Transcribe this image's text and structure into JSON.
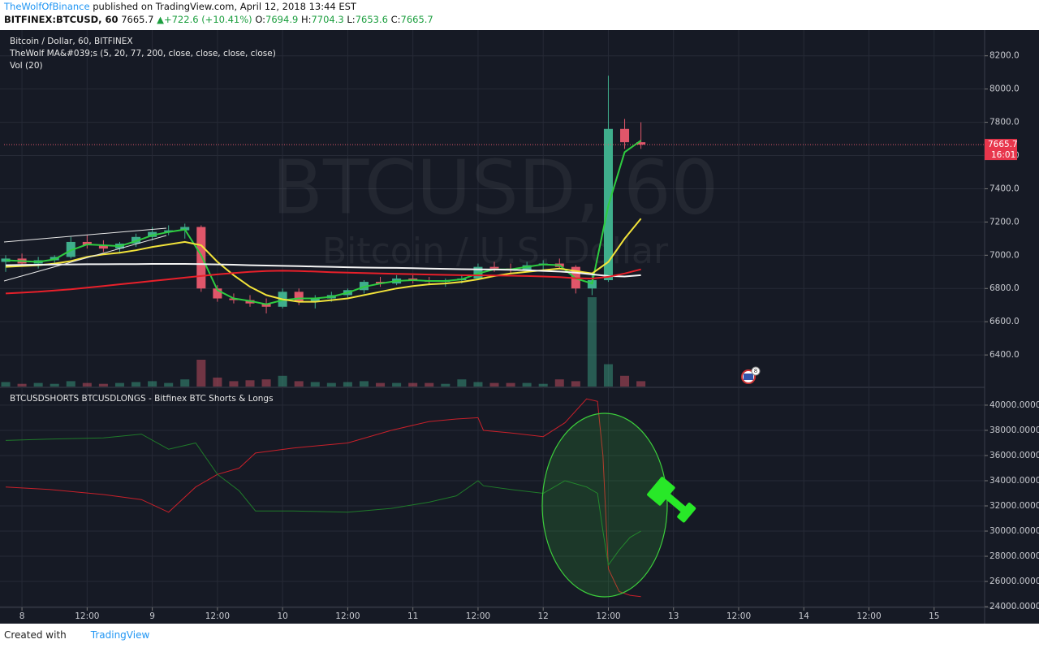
{
  "header": {
    "author": "TheWolfOfBinance",
    "published": "published on TradingView.com, April 12, 2018 13:44 EST",
    "symbol": "BITFINEX:BTCUSD, 60",
    "price": "7665.7",
    "change": "+722.6 (+10.41%)",
    "ohlc": [
      {
        "label": "O:",
        "value": "7694.9"
      },
      {
        "label": "H:",
        "value": "7704.3"
      },
      {
        "label": "L:",
        "value": "7653.6"
      },
      {
        "label": "C:",
        "value": "7665.7"
      }
    ]
  },
  "footer": {
    "created": "Created with",
    "brand": "TradingView"
  },
  "chart_data": [
    {
      "type": "candlestick",
      "title": "Bitcoin / Dollar, 60, BITFINEX",
      "indicator": "TheWolf MA&#039;s (5, 20, 77, 200, close, close, close, close)",
      "volume_label": "Vol (20)",
      "watermark": "BTCUSD, 60",
      "watermark_subtitle": "Bitcoin / U.S. Dollar",
      "event_badge": "8",
      "last_price": 7665.7,
      "countdown": "16:01",
      "up_color": "#3fae8c",
      "down_color": "#e0566a",
      "x": [
        -3,
        0,
        3,
        6,
        9,
        12,
        15,
        18,
        21,
        24,
        27,
        30,
        33,
        36,
        39,
        42,
        45,
        48,
        51,
        54,
        57,
        60,
        63,
        66,
        69,
        72,
        75,
        78,
        81,
        84,
        87,
        90,
        93,
        96,
        99,
        102,
        105,
        108,
        111,
        114
      ],
      "open": [
        6960,
        6980,
        6950,
        6970,
        6990,
        7080,
        7060,
        7040,
        7070,
        7110,
        7140,
        7150,
        7170,
        6800,
        6740,
        6730,
        6710,
        6690,
        6780,
        6720,
        6740,
        6760,
        6790,
        6840,
        6830,
        6860,
        6850,
        6840,
        6850,
        6860,
        6930,
        6920,
        6910,
        6940,
        6950,
        6930,
        6800,
        6850,
        7760,
        7680
      ],
      "high": [
        7000,
        7010,
        6990,
        7000,
        7110,
        7120,
        7090,
        7080,
        7130,
        7170,
        7180,
        7190,
        7180,
        6820,
        6770,
        6760,
        6740,
        6800,
        6800,
        6760,
        6780,
        6800,
        6850,
        6870,
        6880,
        6880,
        6870,
        6860,
        6880,
        6950,
        6960,
        6950,
        6960,
        6970,
        6980,
        6940,
        6880,
        8080,
        7820,
        7800
      ],
      "low": [
        6900,
        6940,
        6920,
        6950,
        6980,
        7040,
        7020,
        7010,
        7050,
        7090,
        7120,
        7100,
        6780,
        6720,
        6710,
        6690,
        6650,
        6680,
        6700,
        6680,
        6720,
        6740,
        6770,
        6810,
        6820,
        6830,
        6820,
        6810,
        6830,
        6850,
        6900,
        6890,
        6900,
        6910,
        6920,
        6770,
        6760,
        6840,
        7640,
        7640
      ],
      "close": [
        6980,
        6950,
        6970,
        6990,
        7080,
        7060,
        7040,
        7070,
        7110,
        7140,
        7150,
        7170,
        6800,
        6740,
        6730,
        6710,
        6690,
        6780,
        6720,
        6740,
        6760,
        6790,
        6840,
        6830,
        6860,
        6850,
        6840,
        6850,
        6860,
        6930,
        6920,
        6910,
        6940,
        6950,
        6930,
        6800,
        6850,
        7760,
        7680,
        7665.7
      ],
      "volume": [
        5,
        3,
        4,
        3,
        6,
        4,
        3,
        4,
        5,
        6,
        4,
        8,
        30,
        10,
        6,
        7,
        8,
        12,
        6,
        5,
        4,
        5,
        6,
        4,
        4,
        4,
        4,
        3,
        8,
        5,
        4,
        4,
        4,
        3,
        8,
        6,
        100,
        25,
        12,
        6
      ],
      "lines": [
        {
          "color": "#2ecc40",
          "values": [
            6970,
            6965,
            6960,
            6975,
            7030,
            7065,
            7060,
            7055,
            7085,
            7120,
            7140,
            7155,
            7000,
            6790,
            6740,
            6725,
            6705,
            6730,
            6740,
            6740,
            6750,
            6775,
            6810,
            6830,
            6845,
            6850,
            6845,
            6845,
            6855,
            6890,
            6915,
            6915,
            6930,
            6945,
            6940,
            6860,
            6830,
            7300,
            7620,
            7690
          ]
        },
        {
          "color": "#f2e33a",
          "values": [
            6930,
            6935,
            6940,
            6950,
            6965,
            6990,
            7005,
            7015,
            7030,
            7050,
            7065,
            7080,
            7060,
            6960,
            6880,
            6810,
            6760,
            6735,
            6720,
            6720,
            6730,
            6740,
            6760,
            6780,
            6800,
            6815,
            6825,
            6830,
            6840,
            6855,
            6875,
            6890,
            6900,
            6910,
            6920,
            6905,
            6890,
            6960,
            7100,
            7220
          ]
        },
        {
          "color": "#f4f4f4",
          "values": [
            6940,
            6942,
            6943,
            6944,
            6945,
            6946,
            6946,
            6947,
            6947,
            6948,
            6948,
            6948,
            6947,
            6945,
            6943,
            6940,
            6938,
            6936,
            6934,
            6932,
            6930,
            6928,
            6926,
            6925,
            6924,
            6922,
            6920,
            6918,
            6916,
            6915,
            6914,
            6912,
            6910,
            6906,
            6902,
            6895,
            6885,
            6875,
            6872,
            6880
          ]
        },
        {
          "color": "#e8202a",
          "values": [
            6770,
            6775,
            6780,
            6788,
            6795,
            6805,
            6815,
            6825,
            6835,
            6845,
            6855,
            6865,
            6875,
            6885,
            6893,
            6900,
            6905,
            6907,
            6905,
            6902,
            6898,
            6895,
            6893,
            6890,
            6888,
            6886,
            6884,
            6882,
            6880,
            6879,
            6878,
            6877,
            6875,
            6872,
            6868,
            6862,
            6860,
            6870,
            6890,
            6915
          ]
        }
      ],
      "xlim": [
        -3.3,
        177.3
      ],
      "ylim": [
        6210,
        8355
      ],
      "yticks": [
        {
          "value": 6400,
          "label": "6400.0"
        },
        {
          "value": 6600,
          "label": "6600.0"
        },
        {
          "value": 6800,
          "label": "6800.0"
        },
        {
          "value": 7000,
          "label": "7000.0"
        },
        {
          "value": 7200,
          "label": "7200.0"
        },
        {
          "value": 7400,
          "label": "7400.0"
        },
        {
          "value": 7600,
          "label": "7600.0"
        },
        {
          "value": 7800,
          "label": "7800.0"
        },
        {
          "value": 8000,
          "label": "8000.0"
        },
        {
          "value": 8200,
          "label": "8200.0"
        }
      ],
      "grid": true
    },
    {
      "type": "line",
      "title": "BTCUSDSHORTS BTCUSDLONGS - Bitfinex BTC Shorts & Longs",
      "x": [
        -3,
        5,
        15,
        22,
        27,
        32,
        36,
        40,
        43,
        50,
        60,
        68,
        75,
        80,
        84,
        85,
        90,
        96,
        100,
        104,
        106,
        107,
        108,
        110,
        112,
        114
      ],
      "series": [
        {
          "color": "#c8202a",
          "values": [
            33500,
            33300,
            32900,
            32500,
            31500,
            33500,
            34500,
            35000,
            36200,
            36600,
            37000,
            38000,
            38700,
            38900,
            39000,
            38000,
            37800,
            37500,
            38600,
            40500,
            40300,
            36000,
            27000,
            25200,
            24900,
            24800
          ]
        },
        {
          "color": "#1f7a2a",
          "values": [
            37200,
            37300,
            37400,
            37700,
            36500,
            37000,
            34500,
            33200,
            31600,
            31600,
            31500,
            31800,
            32300,
            32800,
            34000,
            33600,
            33300,
            33000,
            34000,
            33500,
            33000,
            30000,
            27300,
            28500,
            29500,
            30000
          ]
        }
      ],
      "xlim": [
        -3.3,
        177.3
      ],
      "ylim": [
        23940,
        41350
      ],
      "yticks": [
        {
          "value": 24000,
          "label": "24000.0000"
        },
        {
          "value": 26000,
          "label": "26000.0000"
        },
        {
          "value": 28000,
          "label": "28000.0000"
        },
        {
          "value": 30000,
          "label": "30000.0000"
        },
        {
          "value": 32000,
          "label": "32000.0000"
        },
        {
          "value": 34000,
          "label": "34000.0000"
        },
        {
          "value": 36000,
          "label": "36000.0000"
        },
        {
          "value": 38000,
          "label": "38000.0000"
        },
        {
          "value": 40000,
          "label": "40000.0000"
        }
      ],
      "xticks": [
        {
          "value": 0,
          "label": "8"
        },
        {
          "value": 12,
          "label": "12:00"
        },
        {
          "value": 24,
          "label": "9"
        },
        {
          "value": 36,
          "label": "12:00"
        },
        {
          "value": 48,
          "label": "10"
        },
        {
          "value": 60,
          "label": "12:00"
        },
        {
          "value": 72,
          "label": "11"
        },
        {
          "value": 84,
          "label": "12:00"
        },
        {
          "value": 96,
          "label": "12"
        },
        {
          "value": 108,
          "label": "12:00"
        },
        {
          "value": 120,
          "label": "13"
        },
        {
          "value": 132,
          "label": "12:00"
        },
        {
          "value": 144,
          "label": "14"
        },
        {
          "value": 156,
          "label": "12:00"
        },
        {
          "value": 168,
          "label": "15"
        }
      ],
      "grid": true
    }
  ]
}
